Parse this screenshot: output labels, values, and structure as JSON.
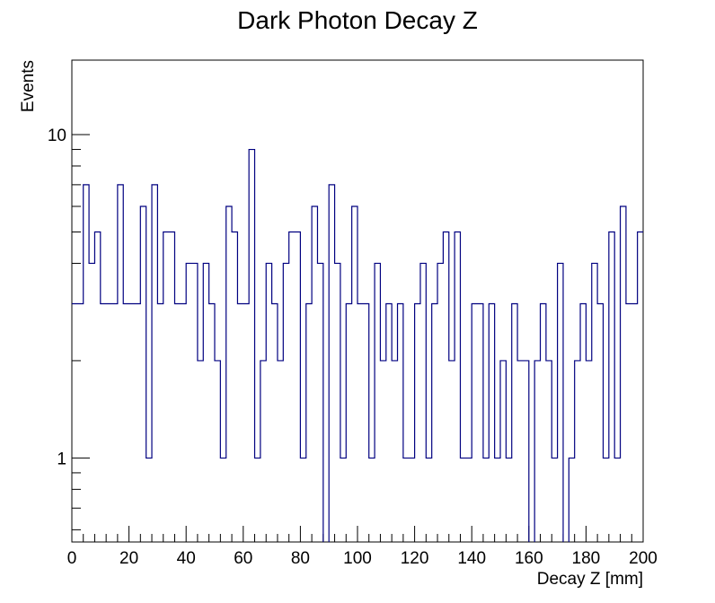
{
  "chart_data": {
    "type": "histogram",
    "title": "Dark Photon Decay Z",
    "xlabel": "Decay Z [mm]",
    "ylabel": "Events",
    "xlim": [
      0,
      200
    ],
    "ylim": [
      0.55,
      17
    ],
    "yscale": "log",
    "grid": false,
    "bin_width": 2,
    "x_tick_labels": [
      "0",
      "20",
      "40",
      "60",
      "80",
      "100",
      "120",
      "140",
      "160",
      "180",
      "200"
    ],
    "y_tick_labels": [
      "1",
      "10"
    ],
    "line_color": "#000080",
    "values": [
      3,
      3,
      7,
      4,
      5,
      3,
      3,
      3,
      7,
      3,
      3,
      3,
      6,
      1,
      7,
      3,
      5,
      5,
      3,
      3,
      4,
      4,
      2,
      4,
      3,
      2,
      1,
      6,
      5,
      3,
      3,
      9,
      1,
      2,
      4,
      3,
      2,
      4,
      5,
      5,
      1,
      3,
      6,
      4,
      0,
      7,
      4,
      1,
      3,
      6,
      3,
      3,
      1,
      4,
      2,
      3,
      2,
      3,
      1,
      1,
      3,
      4,
      1,
      3,
      4,
      5,
      2,
      5,
      1,
      1,
      3,
      3,
      1,
      3,
      1,
      2,
      1,
      3,
      2,
      2,
      0,
      2,
      3,
      2,
      1,
      4,
      0,
      1,
      2,
      3,
      2,
      4,
      3,
      1,
      5,
      1,
      6,
      3,
      3,
      5
    ]
  }
}
